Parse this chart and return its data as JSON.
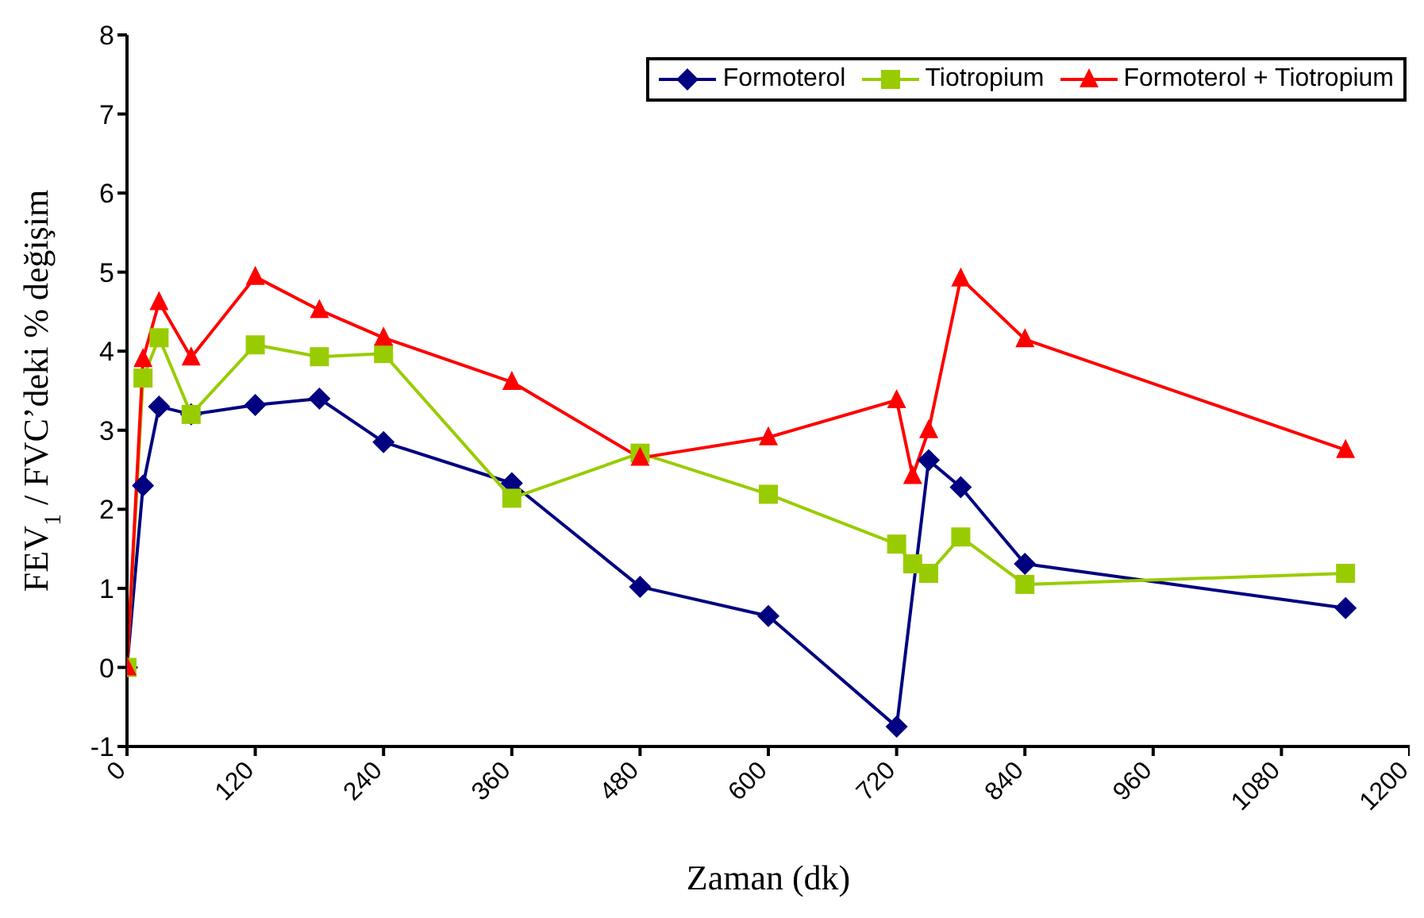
{
  "chart_data": {
    "type": "line",
    "xlabel": "Zaman (dk)",
    "ylabel": "FEV$_{1}$ / FVC’deki % değişim",
    "x": [
      0,
      15,
      30,
      60,
      120,
      180,
      240,
      360,
      480,
      600,
      720,
      735,
      750,
      780,
      840,
      1140
    ],
    "series": [
      {
        "name": "Formoterol",
        "color": "#000080",
        "marker": "diamond",
        "values": [
          0,
          2.3,
          3.3,
          3.2,
          3.32,
          3.4,
          2.85,
          2.33,
          1.02,
          0.65,
          -0.75,
          null,
          2.62,
          2.28,
          1.31,
          0.75
        ]
      },
      {
        "name": "Tiotropium",
        "color": "#99cc00",
        "marker": "square",
        "values": [
          0,
          3.66,
          4.17,
          3.2,
          4.08,
          3.93,
          3.97,
          2.14,
          2.71,
          2.19,
          1.56,
          1.31,
          1.19,
          1.65,
          1.05,
          1.19
        ]
      },
      {
        "name": "Formoterol + Tiotropium",
        "color": "#ff0000",
        "marker": "triangle",
        "values": [
          0,
          3.9,
          4.62,
          3.92,
          4.94,
          4.52,
          4.17,
          3.61,
          2.65,
          2.91,
          3.38,
          2.42,
          3.0,
          4.92,
          4.15,
          2.75
        ]
      }
    ],
    "xlim": [
      0,
      1200
    ],
    "xticks": [
      0,
      120,
      240,
      360,
      480,
      600,
      720,
      840,
      960,
      1080,
      1200
    ],
    "ylim": [
      -1,
      8
    ],
    "yticks": [
      -1,
      0,
      1,
      2,
      3,
      4,
      5,
      6,
      7,
      8
    ],
    "grid": false,
    "legend": "top right",
    "line_style": "solid"
  }
}
